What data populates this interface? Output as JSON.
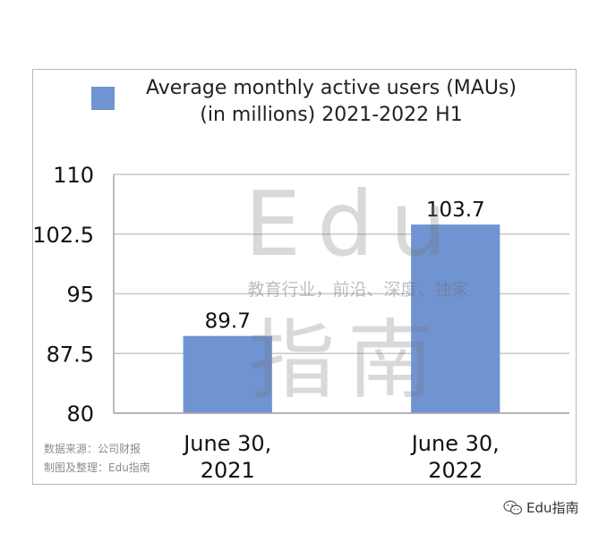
{
  "chart_data": {
    "type": "bar",
    "categories": [
      "June 30,\n2021",
      "June 30,\n2022"
    ],
    "series": [
      {
        "name": "Average monthly active users (MAUs)\n(in millions) 2021-2022 H1",
        "values": [
          89.7,
          103.7
        ]
      }
    ],
    "data_labels": [
      "89.7",
      "103.7"
    ],
    "ylim": [
      80,
      110
    ],
    "yticks": [
      80,
      87.5,
      95,
      102.5,
      110
    ],
    "ytick_labels": [
      "80",
      "87.5",
      "95",
      "102.5",
      "110"
    ],
    "grid": true,
    "legend": "top",
    "bar_color": "#7094d2",
    "grid_color": "#c8c8c8"
  },
  "watermark": {
    "latin": "Edu",
    "tagline": "教育行业，前沿、深度、独家",
    "hanzi": "指南"
  },
  "source_lines": [
    "数据来源：公司财报",
    "制图及整理：Edu指南"
  ],
  "brand": {
    "label": "Edu指南",
    "icon": "wechat-icon"
  }
}
